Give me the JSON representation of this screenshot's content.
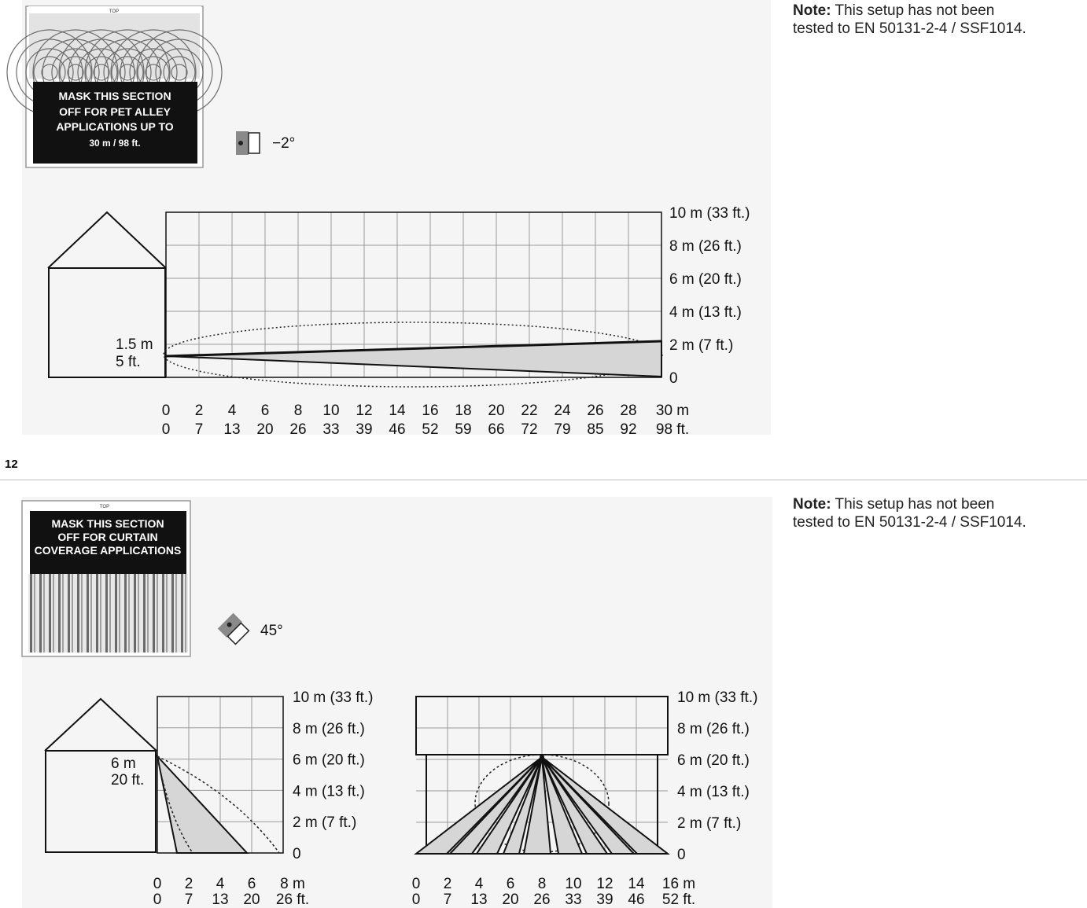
{
  "figure_number": "12",
  "notes": [
    {
      "label": "Note:",
      "line1": "This setup has not been",
      "line2": "tested to EN 50131-2-4 / SSF1014."
    },
    {
      "label": "Note:",
      "line1": "This setup has not been",
      "line2": "tested to EN 50131-2-4 / SSF1014."
    }
  ],
  "pet_alley": {
    "lens_top_label": "TOP",
    "mask_lines": [
      "MASK THIS SECTION",
      "OFF FOR PET ALLEY",
      "APPLICATIONS UP TO",
      "30 m / 98 ft."
    ],
    "angle_label": "−2°",
    "mount_height": [
      "1.5 m",
      "5 ft."
    ],
    "y_labels": [
      "10 m (33 ft.)",
      "8 m (26 ft.)",
      "6 m (20 ft.)",
      "4 m (13 ft.)",
      "2 m (7 ft.)",
      "0"
    ],
    "x_m": [
      "0",
      "2",
      "4",
      "6",
      "8",
      "10",
      "12",
      "14",
      "16",
      "18",
      "20",
      "22",
      "24",
      "26",
      "28",
      "30 m"
    ],
    "x_ft": [
      "0",
      "7",
      "13",
      "20",
      "26",
      "33",
      "39",
      "46",
      "52",
      "59",
      "66",
      "72",
      "79",
      "85",
      "92",
      "98 ft."
    ]
  },
  "curtain": {
    "lens_top_label": "TOP",
    "mask_lines": [
      "MASK THIS SECTION",
      "OFF FOR CURTAIN",
      "COVERAGE APPLICATIONS"
    ],
    "angle_label": "45°",
    "mount_height": [
      "6 m",
      "20 ft."
    ],
    "side_y_labels": [
      "10 m (33 ft.)",
      "8 m (26 ft.)",
      "6 m (20 ft.)",
      "4 m (13 ft.)",
      "2 m (7 ft.)",
      "0"
    ],
    "side_x_m": [
      "0",
      "2",
      "4",
      "6",
      "8 m"
    ],
    "side_x_ft": [
      "0",
      "7",
      "13",
      "20",
      "26 ft."
    ],
    "top_y_labels": [
      "10 m (33 ft.)",
      "8 m (26 ft.)",
      "6 m (20 ft.)",
      "4 m (13 ft.)",
      "2 m (7 ft.)",
      "0"
    ],
    "top_x_m": [
      "0",
      "2",
      "4",
      "6",
      "8",
      "10",
      "12",
      "14",
      "16 m"
    ],
    "top_x_ft": [
      "0",
      "7",
      "13",
      "20",
      "26",
      "33",
      "39",
      "46",
      "52 ft."
    ]
  },
  "colors": {
    "panel_bg": "#f5f5f5",
    "mask_black": "#111111",
    "zone_fill": "#d6d6d6",
    "grid": "#9a9a9a"
  }
}
